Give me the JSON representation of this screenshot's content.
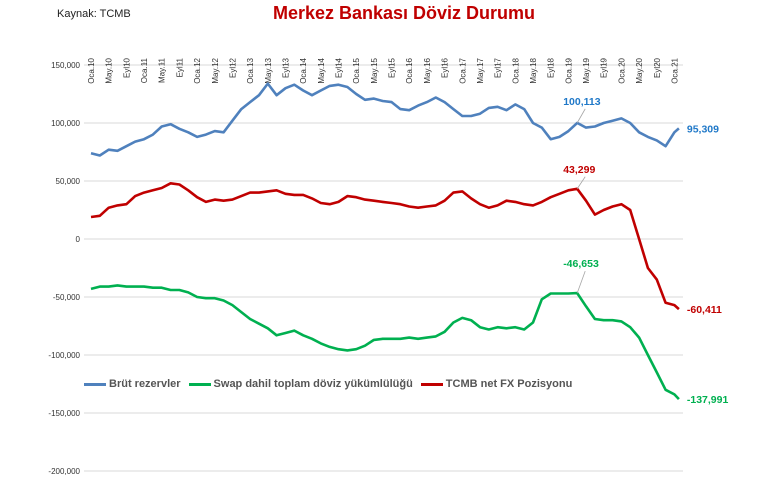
{
  "source": "Kaynak: TCMB",
  "chart_data": {
    "type": "line",
    "title": "Merkez Bankası Döviz Durumu",
    "xlabel": "",
    "ylabel": "",
    "ylim": [
      -200000,
      150000
    ],
    "y_ticks": [
      150000,
      100000,
      50000,
      0,
      -50000,
      -100000,
      -150000,
      -200000
    ],
    "y_tick_labels": [
      "150,000",
      "100,000",
      "50,000",
      "0",
      "-50,000",
      "-100,000",
      "-150,000",
      "-200,000"
    ],
    "x_tick_labels": [
      "Oca.10",
      "May.10",
      "Eyl10",
      "Oca.11",
      "May.11",
      "Eyl11",
      "Oca.12",
      "May.12",
      "Eyl12",
      "Oca.13",
      "May.13",
      "Eyl13",
      "Oca.14",
      "May.14",
      "Eyl14",
      "Oca.15",
      "May.15",
      "Eyl15",
      "Oca.16",
      "May.16",
      "Eyl16",
      "Oca.17",
      "May.17",
      "Eyl17",
      "Oca.18",
      "May.18",
      "Eyl18",
      "Oca.19",
      "May.19",
      "Eyl19",
      "Oca.20",
      "May.20",
      "Eyl20",
      "Oca.21"
    ],
    "x_tick_months": [
      0,
      4,
      8,
      12,
      16,
      20,
      24,
      28,
      32,
      36,
      40,
      44,
      48,
      52,
      56,
      60,
      64,
      68,
      72,
      76,
      80,
      84,
      88,
      92,
      96,
      100,
      104,
      108,
      112,
      116,
      120,
      124,
      128,
      132
    ],
    "x_months": [
      0,
      2,
      4,
      6,
      8,
      10,
      12,
      14,
      16,
      18,
      20,
      22,
      24,
      26,
      28,
      30,
      32,
      34,
      36,
      38,
      40,
      42,
      44,
      46,
      48,
      50,
      52,
      54,
      56,
      58,
      60,
      62,
      64,
      66,
      68,
      70,
      72,
      74,
      76,
      78,
      80,
      82,
      84,
      86,
      88,
      90,
      92,
      94,
      96,
      98,
      100,
      102,
      104,
      106,
      108,
      110,
      112,
      114,
      116,
      118,
      120,
      122,
      124,
      126,
      128,
      130,
      132,
      133
    ],
    "x_note": "months since Jan 2010",
    "grid": true,
    "legend_position": "bottom",
    "series": [
      {
        "name": "Brüt rezervler",
        "color": "#4f81bd",
        "values": [
          74000,
          72000,
          77000,
          76000,
          80000,
          84000,
          86000,
          90000,
          97000,
          99000,
          95000,
          92000,
          88000,
          90000,
          93000,
          92000,
          102000,
          112000,
          118000,
          124000,
          134000,
          124000,
          130000,
          133000,
          128000,
          124000,
          128000,
          132000,
          133000,
          131000,
          125000,
          120000,
          121000,
          119000,
          118000,
          112000,
          111000,
          115000,
          118000,
          122000,
          118000,
          112000,
          106000,
          106000,
          108000,
          113000,
          114000,
          111000,
          116000,
          112000,
          100000,
          96000,
          86000,
          88000,
          93000,
          100113,
          96000,
          97000,
          100000,
          102000,
          104000,
          100000,
          92000,
          88000,
          85000,
          80000,
          92000,
          95309
        ],
        "labels": [
          {
            "text": "100,113",
            "month": 110
          },
          {
            "text": "95,309",
            "month": 133
          }
        ]
      },
      {
        "name": "Swap dahil toplam döviz yükümlülüğü",
        "color": "#00b050",
        "values": [
          -43000,
          -41000,
          -41000,
          -40000,
          -41000,
          -41000,
          -41000,
          -42000,
          -42000,
          -44000,
          -44000,
          -46000,
          -50000,
          -51000,
          -51000,
          -53000,
          -57000,
          -63000,
          -69000,
          -73000,
          -77000,
          -83000,
          -81000,
          -79000,
          -83000,
          -86000,
          -90000,
          -93000,
          -95000,
          -96000,
          -95000,
          -92000,
          -87000,
          -86000,
          -86000,
          -86000,
          -85000,
          -86000,
          -85000,
          -84000,
          -80000,
          -72000,
          -68000,
          -70000,
          -76000,
          -78000,
          -76000,
          -77000,
          -76000,
          -78000,
          -72000,
          -52000,
          -47000,
          -47000,
          -47000,
          -46653,
          -58000,
          -69000,
          -70000,
          -70000,
          -71000,
          -76000,
          -85000,
          -100000,
          -115000,
          -130000,
          -134000,
          -137991
        ],
        "labels": [
          {
            "text": "-46,653",
            "month": 110
          },
          {
            "text": "-137,991",
            "month": 133
          }
        ]
      },
      {
        "name": "TCMB net FX Pozisyonu",
        "color": "#c00000",
        "values": [
          19000,
          20000,
          27000,
          29000,
          30000,
          37000,
          40000,
          42000,
          44000,
          48000,
          47000,
          42000,
          36000,
          32000,
          34000,
          33000,
          34000,
          37000,
          40000,
          40000,
          41000,
          42000,
          39000,
          38000,
          38000,
          35000,
          31000,
          30000,
          32000,
          37000,
          36000,
          34000,
          33000,
          32000,
          31000,
          30000,
          28000,
          27000,
          28000,
          29000,
          33000,
          40000,
          41000,
          35000,
          30000,
          27000,
          29000,
          33000,
          32000,
          30000,
          29000,
          32000,
          36000,
          39000,
          42000,
          43299,
          33000,
          21000,
          25000,
          28000,
          30000,
          25000,
          0,
          -25000,
          -35000,
          -55000,
          -57000,
          -60411
        ],
        "labels": [
          {
            "text": "43,299",
            "month": 110
          },
          {
            "text": "-60,411",
            "month": 133
          }
        ]
      }
    ]
  }
}
